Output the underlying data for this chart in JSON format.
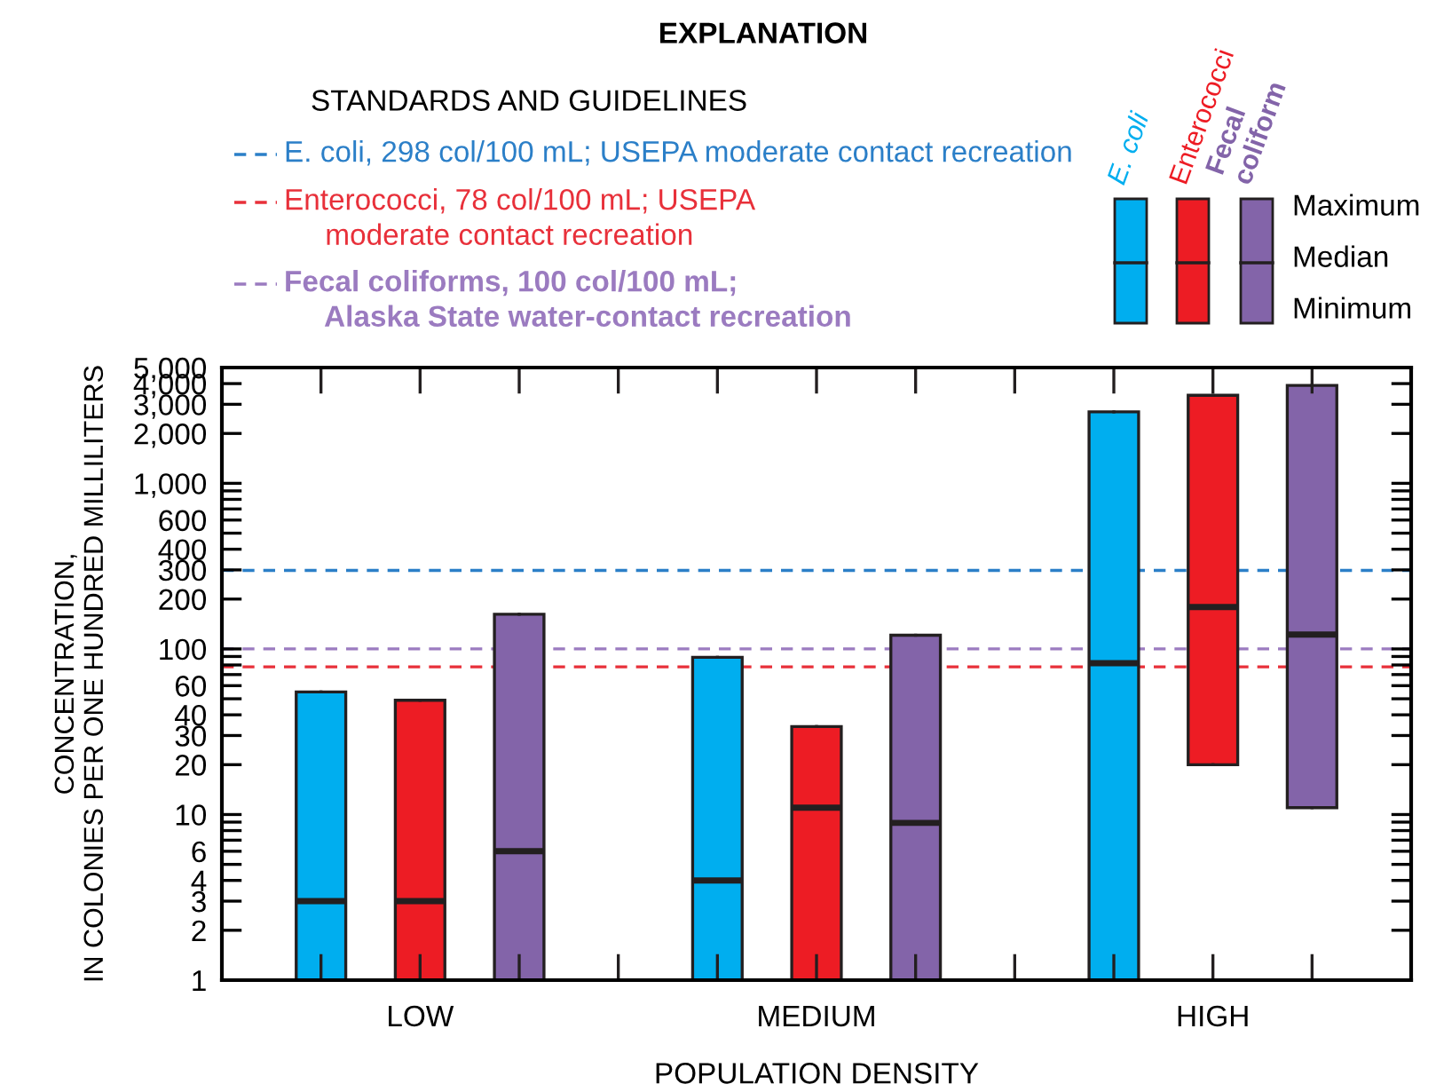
{
  "chart_data": {
    "type": "box",
    "legend_title": "EXPLANATION",
    "xlabel": "POPULATION DENSITY",
    "ylabel": "CONCENTRATION,\nIN COLONIES PER ONE HUNDRED MILLILITERS",
    "categories": [
      "LOW",
      "MEDIUM",
      "HIGH"
    ],
    "log": "y",
    "ylim": [
      1,
      5000
    ],
    "yticks": [
      1,
      2,
      3,
      4,
      {
        "value": 5,
        "label": null
      },
      6,
      {
        "value": 7,
        "label": null
      },
      {
        "value": 8,
        "label": null
      },
      {
        "value": 9,
        "label": null
      },
      10,
      20,
      30,
      40,
      {
        "value": 50,
        "label": null
      },
      60,
      {
        "value": 70,
        "label": null
      },
      {
        "value": 80,
        "label": null
      },
      {
        "value": 90,
        "label": null
      },
      100,
      200,
      300,
      400,
      {
        "value": 500,
        "label": null
      },
      600,
      {
        "value": 700,
        "label": null
      },
      {
        "value": 800,
        "label": null
      },
      {
        "value": 900,
        "label": null
      },
      {
        "value": 1000,
        "label": "1,000"
      },
      {
        "value": 2000,
        "label": "2,000"
      },
      {
        "value": 3000,
        "label": "3,000"
      },
      {
        "value": 4000,
        "label": "4,000"
      },
      {
        "value": 5000,
        "label": "5,000"
      }
    ],
    "legend": "top",
    "grid": false,
    "series": [
      {
        "name": "E. coli",
        "color": "#00aeef",
        "boxes": [
          {
            "low": 1,
            "q1": 1,
            "median": 3,
            "q3": 55,
            "high": 55
          },
          {
            "low": 1,
            "q1": 1,
            "median": 4,
            "q3": 89,
            "high": 89
          },
          {
            "low": 1,
            "q1": 1,
            "median": 82,
            "q3": 2700,
            "high": 2700
          }
        ]
      },
      {
        "name": "Enterococci",
        "color": "#ed1c24",
        "boxes": [
          {
            "low": 1,
            "q1": 1,
            "median": 3,
            "q3": 49,
            "high": 49
          },
          {
            "low": 1,
            "q1": 1,
            "median": 11,
            "q3": 34,
            "high": 34
          },
          {
            "low": 20,
            "q1": 20,
            "median": 179,
            "q3": 3400,
            "high": 3400
          }
        ]
      },
      {
        "name": "Fecal coliform",
        "color": "#8364a9",
        "boxes": [
          {
            "low": 1,
            "q1": 1,
            "median": 6,
            "q3": 162,
            "high": 162
          },
          {
            "low": 1,
            "q1": 1,
            "median": 8.9,
            "q3": 121,
            "high": 121
          },
          {
            "low": 11,
            "q1": 11,
            "median": 122,
            "q3": 3900,
            "high": 3900
          }
        ]
      }
    ],
    "ref_lines": [
      {
        "axis": "y",
        "value": 298,
        "label": "E. coli, 298 col/100 mL; USEPA moderate contact recreation",
        "color": "#2b7fc8",
        "line_style": "dashed"
      },
      {
        "axis": "y",
        "value": 78,
        "label": "Enterococci, 78 col/100 mL; USEPA\n     moderate contact recreation",
        "color": "#e8303a",
        "line_style": "dashed"
      },
      {
        "axis": "y",
        "value": 100,
        "label": "Fecal coliforms, 100 col/100 mL;\n     Alaska State water-contact recreation",
        "color": "#9b7bc0",
        "line_style": "dashed"
      }
    ],
    "annotations": [
      "STANDARDS AND GUIDELINES",
      "Maximum",
      "Median",
      "Minimum"
    ]
  }
}
